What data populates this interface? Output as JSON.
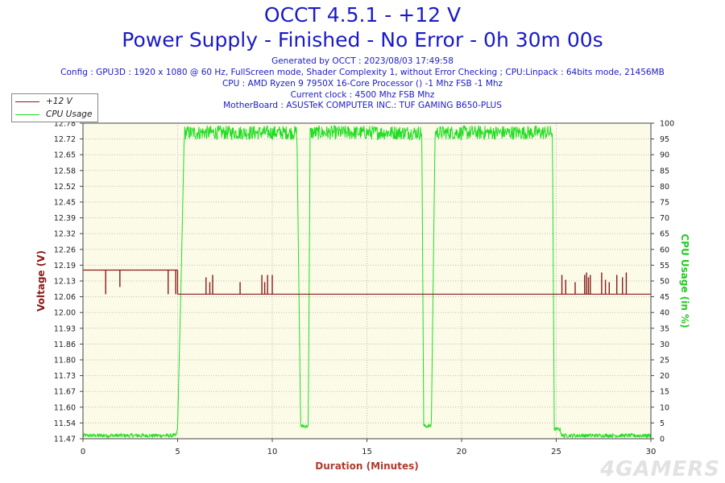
{
  "header": {
    "title_line1": "OCCT 4.5.1 - +12 V",
    "title_line2": "Power Supply - Finished - No Error - 0h 30m 00s",
    "generated": "Generated by OCCT : 2023/08/03 17:49:58",
    "config": "Config : GPU3D : 1920 x 1080 @ 60 Hz, FullScreen mode, Shader Complexity 1, without Error Checking ; CPU:Linpack : 64bits mode, 21456MB",
    "cpu": "CPU : AMD Ryzen 9 7950X 16-Core Processor () -1 Mhz FSB -1 Mhz",
    "clock": "Current clock : 4500 Mhz FSB  Mhz",
    "motherboard": "MotherBoard : ASUSTeK COMPUTER INC.: TUF GAMING B650-PLUS"
  },
  "watermark": "4GAMERS",
  "colors": {
    "voltage": "#8b1a1a",
    "cpu": "#22dd22",
    "plot_bg": "#fbfbe8",
    "grid": "#bdbdbd",
    "xlabel": "#b03a2e",
    "ylabel_left": "#8b1a1a",
    "ylabel_right": "#22cc22"
  },
  "chart_data": {
    "type": "line",
    "xlabel": "Duration (Minutes)",
    "ylabel": "Voltage (V)",
    "y2label": "CPU Usage (in %)",
    "xlim": [
      0,
      30
    ],
    "ylim": [
      11.47,
      12.78
    ],
    "y2lim": [
      0,
      100
    ],
    "grid": true,
    "legend_position": "top-left",
    "x_ticks": [
      "0",
      "5",
      "10",
      "15",
      "20",
      "25",
      "30"
    ],
    "y_ticks": [
      "11.47",
      "11.54",
      "11.60",
      "11.67",
      "11.73",
      "11.80",
      "11.86",
      "11.93",
      "12.00",
      "12.06",
      "12.13",
      "12.19",
      "12.26",
      "12.32",
      "12.39",
      "12.45",
      "12.52",
      "12.58",
      "12.65",
      "12.72",
      "12.78"
    ],
    "y2_ticks": [
      "0",
      "5",
      "10",
      "15",
      "20",
      "25",
      "30",
      "35",
      "40",
      "45",
      "50",
      "55",
      "60",
      "65",
      "70",
      "75",
      "80",
      "85",
      "90",
      "95",
      "100"
    ],
    "series": [
      {
        "name": "+12 V",
        "axis": "left",
        "baseline_segments": [
          {
            "x": [
              0,
              5.0
            ],
            "y": 12.17
          },
          {
            "x": [
              5.0,
              30
            ],
            "y": 12.07
          }
        ],
        "spikes": [
          {
            "x": 1.2,
            "y": 12.07
          },
          {
            "x": 1.95,
            "y": 12.1
          },
          {
            "x": 4.5,
            "y": 12.07
          },
          {
            "x": 4.9,
            "y": 12.07
          },
          {
            "x": 6.5,
            "y": 12.14
          },
          {
            "x": 6.7,
            "y": 12.12
          },
          {
            "x": 6.85,
            "y": 12.15
          },
          {
            "x": 8.3,
            "y": 12.12
          },
          {
            "x": 9.45,
            "y": 12.15
          },
          {
            "x": 9.6,
            "y": 12.12
          },
          {
            "x": 9.75,
            "y": 12.15
          },
          {
            "x": 10.0,
            "y": 12.15
          },
          {
            "x": 25.3,
            "y": 12.15
          },
          {
            "x": 25.5,
            "y": 12.13
          },
          {
            "x": 26.0,
            "y": 12.12
          },
          {
            "x": 26.5,
            "y": 12.15
          },
          {
            "x": 26.6,
            "y": 12.16
          },
          {
            "x": 26.7,
            "y": 12.14
          },
          {
            "x": 26.8,
            "y": 12.15
          },
          {
            "x": 27.4,
            "y": 12.16
          },
          {
            "x": 27.6,
            "y": 12.13
          },
          {
            "x": 27.8,
            "y": 12.12
          },
          {
            "x": 28.2,
            "y": 12.15
          },
          {
            "x": 28.5,
            "y": 12.14
          },
          {
            "x": 28.7,
            "y": 12.16
          }
        ]
      },
      {
        "name": "CPU Usage",
        "axis": "right",
        "profile": [
          {
            "x": 0,
            "y": 1
          },
          {
            "x": 4.9,
            "y": 1
          },
          {
            "x": 5.0,
            "y": 3
          },
          {
            "x": 5.2,
            "y": 55
          },
          {
            "x": 5.35,
            "y": 97
          },
          {
            "x": 11.3,
            "y": 97
          },
          {
            "x": 11.5,
            "y": 4
          },
          {
            "x": 11.9,
            "y": 4
          },
          {
            "x": 12.0,
            "y": 97
          },
          {
            "x": 17.9,
            "y": 97
          },
          {
            "x": 18.0,
            "y": 4
          },
          {
            "x": 18.4,
            "y": 4
          },
          {
            "x": 18.6,
            "y": 97
          },
          {
            "x": 24.8,
            "y": 97
          },
          {
            "x": 24.9,
            "y": 3
          },
          {
            "x": 25.2,
            "y": 3
          },
          {
            "x": 25.3,
            "y": 1
          },
          {
            "x": 30,
            "y": 1
          }
        ]
      }
    ]
  }
}
